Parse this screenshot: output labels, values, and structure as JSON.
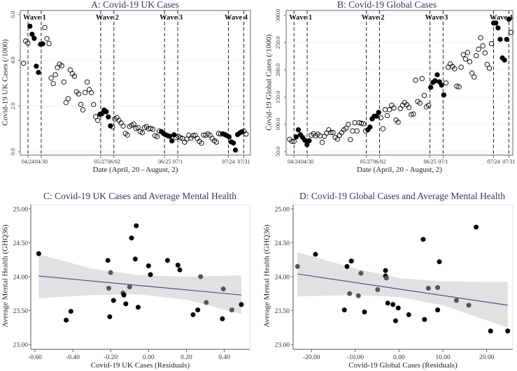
{
  "chart_data": [
    {
      "type": "scatter",
      "title": "A: Covid-19 UK Cases",
      "xlabel": "Date (April, 20 - August, 2)",
      "ylabel": "Covid-19 UK Cases (/1000)",
      "x_unit": "days since April 20",
      "xlim": [
        0.5,
        105
      ],
      "ylim": [
        -0.15,
        6.18
      ],
      "grid": true,
      "y_ticks": {
        "values": [
          0,
          2,
          4,
          6
        ],
        "labels": [
          "0.0",
          "2.0",
          "4.0",
          "6.0"
        ]
      },
      "x_ticks": {
        "values": [
          4,
          10,
          37,
          43,
          66,
          72,
          95,
          102
        ],
        "labels": [
          "04/24",
          "04/30",
          "05/27",
          "06/02",
          "06/25",
          "07/1",
          "07/24",
          "07/31"
        ]
      },
      "waves": [
        {
          "label": "Wave 1",
          "start": 4,
          "end": 10
        },
        {
          "label": "Wave 2",
          "start": 37,
          "end": 43
        },
        {
          "label": "Wave 3",
          "start": 66,
          "end": 72
        },
        {
          "label": "Wave 4",
          "start": 95,
          "end": 102
        }
      ],
      "x_start": 2,
      "x_end": 103,
      "values": [
        3.87,
        4.84,
        4.75,
        5.49,
        5.14,
        4.96,
        3.74,
        3.47,
        4.7,
        4.72,
        5.43,
        4.95,
        4.73,
        3.22,
        2.98,
        3.37,
        3.68,
        3.83,
        3.76,
        3.05,
        2.15,
        2.32,
        3.58,
        3.41,
        3.3,
        2.62,
        2.53,
        2.07,
        1.83,
        2.59,
        3.05,
        2.72,
        2.58,
        2.06,
        1.53,
        1.37,
        1.63,
        1.66,
        1.82,
        1.75,
        1.52,
        1.13,
        1.08,
        1.43,
        1.49,
        1.37,
        1.26,
        1.12,
        0.8,
        0.73,
        1.1,
        1.16,
        1.21,
        1.02,
        1.06,
        0.88,
        0.83,
        1.05,
        1.1,
        1.0,
        1.02,
        0.98,
        0.7,
        0.66,
        0.9,
        0.88,
        0.8,
        0.74,
        0.7,
        0.67,
        0.47,
        0.74,
        0.62,
        0.67,
        0.61,
        0.58,
        0.42,
        0.55,
        0.72,
        0.6,
        0.7,
        0.72,
        0.58,
        0.45,
        0.37,
        0.73,
        0.72,
        0.78,
        0.72,
        0.58,
        0.48,
        0.42,
        0.8,
        0.77,
        0.78,
        0.75,
        0.7,
        0.65,
        0.43,
        0.38,
        0.07,
        0.75,
        0.82,
        0.87,
        0.9,
        0.77
      ],
      "filled_ranges": [
        [
          3,
          9
        ],
        [
          36,
          41
        ],
        [
          65,
          71
        ],
        [
          94,
          103
        ]
      ]
    },
    {
      "type": "scatter",
      "title": "B: Covid-19 Global Cases",
      "xlabel": "Date (April, 20 - August, 2)",
      "ylabel": "Covid-19 Global Cases (/1000)",
      "x_unit": "days since April 20",
      "xlim": [
        0.4,
        103.8
      ],
      "ylim": [
        43.6,
        309
      ],
      "grid": true,
      "y_ticks": {
        "values": [
          50,
          100,
          150,
          200,
          250,
          300
        ],
        "labels": [
          "50.0",
          "100.0",
          "150.0",
          "200.0",
          "250.0",
          "300.0"
        ]
      },
      "x_ticks": {
        "values": [
          4,
          10,
          37,
          43,
          66,
          72,
          95,
          102
        ],
        "labels": [
          "04/24",
          "04/30",
          "05/27",
          "06/02",
          "06/25",
          "07/1",
          "07/24",
          "07/31"
        ]
      },
      "waves": [
        {
          "label": "Wave 1",
          "start": 4,
          "end": 10
        },
        {
          "label": "Wave 2",
          "start": 37,
          "end": 43
        },
        {
          "label": "Wave 3",
          "start": 66,
          "end": 72
        },
        {
          "label": "Wave 4",
          "start": 95,
          "end": 102
        }
      ],
      "x_start": 2,
      "x_end": 103,
      "values": [
        72.6,
        68.8,
        68.8,
        77,
        90,
        81,
        76,
        71,
        63,
        70,
        80,
        83,
        79,
        82,
        79,
        67,
        78,
        84,
        90,
        85,
        85,
        76,
        73,
        80,
        85,
        90,
        93,
        100,
        72,
        88,
        103,
        88,
        103,
        102,
        101,
        88,
        90,
        95,
        110,
        115,
        115,
        122,
        112,
        92,
        127,
        116,
        127,
        135,
        130,
        108,
        104,
        129,
        135,
        140,
        136,
        131,
        118,
        119,
        181,
        142,
        139,
        184,
        153,
        132,
        135,
        168,
        177,
        180,
        191,
        178,
        172,
        154,
        176,
        205,
        211,
        206,
        202,
        170,
        169,
        205,
        228,
        220,
        232,
        215,
        194,
        187,
        226,
        238,
        259,
        244,
        231,
        210,
        203,
        248,
        286,
        286,
        277,
        256,
        222,
        218,
        256,
        293,
        269
      ],
      "filled_ranges": [
        [
          3,
          9
        ],
        [
          36,
          41
        ],
        [
          65,
          71
        ],
        [
          94,
          101
        ]
      ]
    },
    {
      "type": "scatter",
      "title": "C: Covid-19 UK Cases and Average Mental Health",
      "xlabel": "Covid-19 UK Cases (Residuals)",
      "ylabel": "Average Mental Health (GHQ36)",
      "xlim": [
        -0.622,
        0.5345
      ],
      "ylim": [
        22.93,
        25.06
      ],
      "x_ticks": {
        "values": [
          -0.6,
          -0.4,
          -0.2,
          0,
          0.2,
          0.4
        ],
        "labels": [
          "-0.60",
          "-0.40",
          "-0.20",
          "0.00",
          "0.20",
          "0.40"
        ]
      },
      "y_ticks": {
        "values": [
          23,
          23.5,
          24,
          24.5,
          25
        ],
        "labels": [
          "23.00",
          "23.50",
          "24.00",
          "24.50",
          "25.00"
        ]
      },
      "points": [
        {
          "x": -0.58,
          "y": 24.34,
          "g": 0
        },
        {
          "x": -0.435,
          "y": 23.36,
          "g": 0
        },
        {
          "x": -0.41,
          "y": 23.49,
          "g": 0
        },
        {
          "x": -0.215,
          "y": 24.24,
          "g": 0
        },
        {
          "x": -0.2,
          "y": 24.06,
          "g": 1
        },
        {
          "x": -0.21,
          "y": 23.83,
          "g": 1
        },
        {
          "x": -0.205,
          "y": 23.41,
          "g": 0
        },
        {
          "x": -0.185,
          "y": 23.65,
          "g": 0
        },
        {
          "x": -0.135,
          "y": 23.76,
          "g": 1
        },
        {
          "x": -0.13,
          "y": 23.73,
          "g": 0
        },
        {
          "x": -0.12,
          "y": 23.6,
          "g": 0
        },
        {
          "x": -0.1,
          "y": 23.85,
          "g": 1
        },
        {
          "x": -0.09,
          "y": 24.57,
          "g": 0
        },
        {
          "x": -0.07,
          "y": 24.26,
          "g": 0
        },
        {
          "x": -0.065,
          "y": 24.75,
          "g": 0
        },
        {
          "x": -0.055,
          "y": 23.55,
          "g": 0
        },
        {
          "x": 0.0,
          "y": 24.16,
          "g": 0
        },
        {
          "x": 0.01,
          "y": 24.03,
          "g": 0
        },
        {
          "x": 0.1,
          "y": 24.24,
          "g": 0
        },
        {
          "x": 0.155,
          "y": 24.17,
          "g": 0
        },
        {
          "x": 0.165,
          "y": 24.1,
          "g": 0
        },
        {
          "x": 0.235,
          "y": 23.44,
          "g": 0
        },
        {
          "x": 0.26,
          "y": 23.51,
          "g": 0
        },
        {
          "x": 0.275,
          "y": 24.0,
          "g": 1
        },
        {
          "x": 0.305,
          "y": 23.62,
          "g": 1
        },
        {
          "x": 0.395,
          "y": 23.82,
          "g": 1
        },
        {
          "x": 0.39,
          "y": 23.38,
          "g": 0
        },
        {
          "x": 0.44,
          "y": 23.51,
          "g": 1
        },
        {
          "x": 0.49,
          "y": 23.59,
          "g": 0
        }
      ],
      "fit_line": {
        "x": [
          -0.58,
          0.49
        ],
        "y": [
          24.01,
          23.73
        ]
      },
      "ci_band": {
        "x": [
          -0.58,
          -0.3,
          -0.05,
          0.2,
          0.49
        ],
        "upper": [
          24.33,
          24.12,
          24.02,
          24.0,
          24.02
        ],
        "lower": [
          23.68,
          23.73,
          23.74,
          23.66,
          23.45
        ]
      }
    },
    {
      "type": "scatter",
      "title": "D: Covid-19 Global Cases and Average Mental Health",
      "xlabel": "Covid-19 Global Cases (Residuals)",
      "ylabel": "Average Mental Health (GHQ36)",
      "xlim": [
        -24.2,
        25.97
      ],
      "ylim": [
        22.93,
        25.06
      ],
      "x_ticks": {
        "values": [
          -20,
          -10,
          0,
          10,
          20
        ],
        "labels": [
          "-20.00",
          "-10.00",
          "0.00",
          "10.00",
          "20.00"
        ]
      },
      "y_ticks": {
        "values": [
          23,
          23.5,
          24,
          24.5,
          25
        ],
        "labels": [
          "23.00",
          "23.50",
          "24.00",
          "24.50",
          "25.00"
        ]
      },
      "points": [
        {
          "x": -23.2,
          "y": 24.15,
          "g": 1
        },
        {
          "x": -19.1,
          "y": 24.33,
          "g": 0
        },
        {
          "x": -11.9,
          "y": 24.15,
          "g": 0
        },
        {
          "x": -10.9,
          "y": 24.23,
          "g": 0
        },
        {
          "x": -12.5,
          "y": 23.51,
          "g": 0
        },
        {
          "x": -11.3,
          "y": 23.75,
          "g": 1
        },
        {
          "x": -9.3,
          "y": 23.72,
          "g": 1
        },
        {
          "x": -8.7,
          "y": 24.05,
          "g": 1
        },
        {
          "x": -7.9,
          "y": 23.48,
          "g": 0
        },
        {
          "x": -4.9,
          "y": 23.81,
          "g": 1
        },
        {
          "x": -3.1,
          "y": 24.09,
          "g": 0
        },
        {
          "x": -3.1,
          "y": 24.01,
          "g": 0
        },
        {
          "x": -2.9,
          "y": 23.98,
          "g": 1
        },
        {
          "x": -2.6,
          "y": 23.61,
          "g": 0
        },
        {
          "x": -1.4,
          "y": 23.59,
          "g": 0
        },
        {
          "x": -0.8,
          "y": 23.35,
          "g": 0
        },
        {
          "x": -0.2,
          "y": 23.54,
          "g": 0
        },
        {
          "x": 2.2,
          "y": 23.44,
          "g": 0
        },
        {
          "x": 5.5,
          "y": 24.55,
          "g": 0
        },
        {
          "x": 5.8,
          "y": 23.37,
          "g": 0
        },
        {
          "x": 6.7,
          "y": 23.83,
          "g": 1
        },
        {
          "x": 8.8,
          "y": 23.84,
          "g": 1
        },
        {
          "x": 8.8,
          "y": 23.51,
          "g": 0
        },
        {
          "x": 9.2,
          "y": 24.22,
          "g": 0
        },
        {
          "x": 13.1,
          "y": 23.65,
          "g": 1
        },
        {
          "x": 15.9,
          "y": 23.58,
          "g": 1
        },
        {
          "x": 17.6,
          "y": 24.73,
          "g": 0
        },
        {
          "x": 20.9,
          "y": 23.2,
          "g": 0
        },
        {
          "x": 24.8,
          "y": 23.2,
          "g": 0
        }
      ],
      "fit_line": {
        "x": [
          -23.2,
          24.8
        ],
        "y": [
          24.04,
          23.58
        ]
      },
      "ci_band": {
        "x": [
          -23.2,
          -10,
          0,
          10,
          24.8
        ],
        "upper": [
          24.36,
          24.12,
          23.98,
          23.93,
          23.92
        ],
        "lower": [
          23.71,
          23.73,
          23.7,
          23.58,
          23.25
        ]
      }
    }
  ],
  "colors": {
    "title": "#2e3a5e",
    "fit_line": "#3b4a7c",
    "ci_band": "#e1e1e1",
    "point_black": "#000000",
    "point_gray": "#555555",
    "frame": "#666666"
  }
}
